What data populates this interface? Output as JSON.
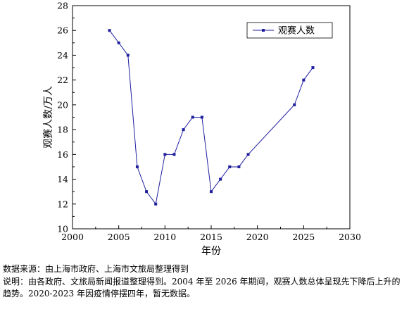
{
  "chart_data": {
    "type": "line",
    "xlabel": "年份",
    "ylabel": "观赛人数/万人",
    "xlim": [
      2000,
      2030
    ],
    "ylim": [
      10,
      28
    ],
    "xticks": [
      2000,
      2005,
      2010,
      2015,
      2020,
      2025,
      2030
    ],
    "yticks": [
      10,
      12,
      14,
      16,
      18,
      20,
      22,
      24,
      26,
      28
    ],
    "legend_position": "top-right",
    "grid": false,
    "series": [
      {
        "name": "观赛人数",
        "color": "#1f1f9e",
        "x": [
          2004,
          2005,
          2006,
          2007,
          2008,
          2009,
          2010,
          2011,
          2012,
          2013,
          2014,
          2015,
          2016,
          2017,
          2018,
          2019,
          2024,
          2025,
          2026
        ],
        "y": [
          26,
          25,
          24,
          15,
          13,
          12,
          16,
          16,
          18,
          19,
          19,
          13,
          14,
          15,
          15,
          16,
          20,
          22,
          23
        ]
      }
    ]
  },
  "notes": {
    "source": "数据来源：由上海市政府、上海市文旅局整理得到",
    "explanation": "说明：由各政府、文旅局新闻报道整理得到。2004 年至 2026 年期间，观赛人数总体呈现先下降后上升的趋势。2020-2023 年因疫情停摆四年，暂无数据。"
  }
}
